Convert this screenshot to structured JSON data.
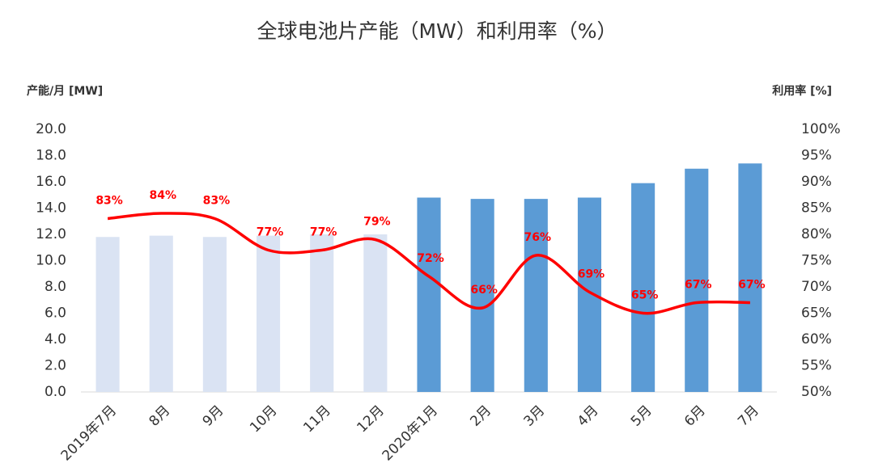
{
  "chart_data": {
    "type": "bar",
    "title": "全球电池片产能（MW）和利用率（%）",
    "y_label": "产能/月 [MW]",
    "y2_label": "利用率 [%]",
    "categories": [
      "2019年7月",
      "8月",
      "9月",
      "10月",
      "11月",
      "12月",
      "2020年1月",
      "2月",
      "3月",
      "4月",
      "5月",
      "6月",
      "7月"
    ],
    "series": [
      {
        "type": "bar",
        "colors": [
          "#dae3f3",
          "#dae3f3",
          "#dae3f3",
          "#dae3f3",
          "#dae3f3",
          "#dae3f3",
          "#5b9bd5",
          "#5b9bd5",
          "#5b9bd5",
          "#5b9bd5",
          "#5b9bd5",
          "#5b9bd5",
          "#5b9bd5"
        ],
        "values": [
          11.8,
          11.9,
          11.8,
          11.9,
          12.0,
          12.0,
          14.8,
          14.7,
          14.7,
          14.8,
          15.9,
          17.0,
          17.4
        ]
      },
      {
        "type": "line",
        "axis": "y2",
        "color": "#ff0000",
        "values": [
          83,
          84,
          83,
          77,
          77,
          79,
          72,
          66,
          76,
          69,
          65,
          67,
          67
        ],
        "value_labels": [
          "83%",
          "84%",
          "83%",
          "77%",
          "77%",
          "79%",
          "72%",
          "66%",
          "76%",
          "69%",
          "65%",
          "67%",
          "67%"
        ]
      }
    ],
    "ylim": [
      0,
      20
    ],
    "yticks": [
      {
        "value": 0,
        "label": "0.0"
      },
      {
        "value": 2,
        "label": "2.0"
      },
      {
        "value": 4,
        "label": "4.0"
      },
      {
        "value": 6,
        "label": "6.0"
      },
      {
        "value": 8,
        "label": "8.0"
      },
      {
        "value": 10,
        "label": "10.0"
      },
      {
        "value": 12,
        "label": "12.0"
      },
      {
        "value": 14,
        "label": "14.0"
      },
      {
        "value": 16,
        "label": "16.0"
      },
      {
        "value": 18,
        "label": "18.0"
      },
      {
        "value": 20,
        "label": "20.0"
      }
    ],
    "y2lim": [
      50,
      100
    ],
    "y2ticks": [
      {
        "value": 50,
        "label": "50%"
      },
      {
        "value": 55,
        "label": "55%"
      },
      {
        "value": 60,
        "label": "60%"
      },
      {
        "value": 65,
        "label": "65%"
      },
      {
        "value": 70,
        "label": "70%"
      },
      {
        "value": 75,
        "label": "75%"
      },
      {
        "value": 80,
        "label": "80%"
      },
      {
        "value": 85,
        "label": "85%"
      },
      {
        "value": 90,
        "label": "90%"
      },
      {
        "value": 95,
        "label": "95%"
      },
      {
        "value": 100,
        "label": "100%"
      }
    ]
  }
}
